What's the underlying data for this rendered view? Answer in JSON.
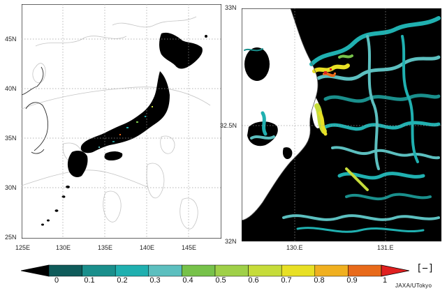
{
  "left_map": {
    "lat_labels": [
      "45N",
      "40N",
      "35N",
      "30N",
      "25N"
    ],
    "lon_labels": [
      "125E",
      "130E",
      "135E",
      "140E",
      "145E"
    ]
  },
  "right_map": {
    "lat_labels": [
      "33N",
      "32.5N",
      "32N"
    ],
    "lon_labels": [
      "130.E",
      "131.E"
    ]
  },
  "colorbar": {
    "labels": [
      "0",
      "0.1",
      "0.2",
      "0.3",
      "0.4",
      "0.5",
      "0.6",
      "0.7",
      "0.8",
      "0.9",
      "1"
    ],
    "colors": [
      "#000000",
      "#0f5b5a",
      "#1a8f8c",
      "#20b0b0",
      "#5cbfbf",
      "#77c24a",
      "#9fd048",
      "#c6dc3a",
      "#e8e025",
      "#f0b020",
      "#e86a1a",
      "#e02020"
    ],
    "unit": "[−]"
  },
  "credit": "JAXA/UTokyo",
  "colors": {
    "land": "#000000",
    "sea": "#ffffff",
    "grid": "#9a9a9a",
    "contour": "#bcbcbc"
  }
}
